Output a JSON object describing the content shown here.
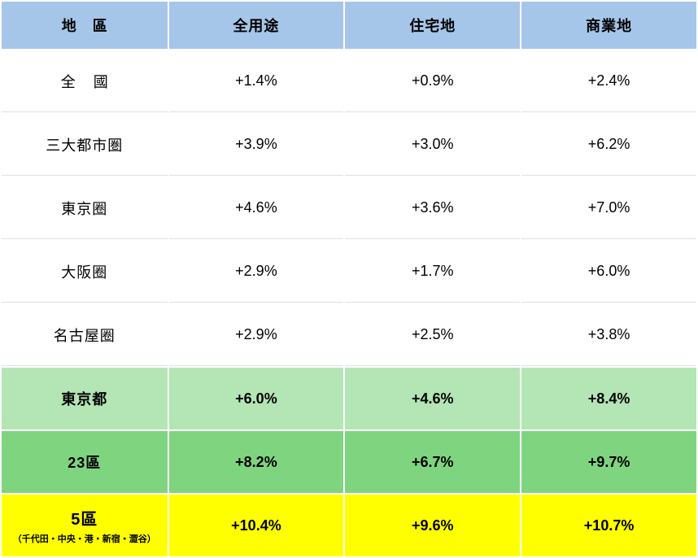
{
  "table": {
    "type": "table",
    "colors": {
      "header_bg": "#a5c6e8",
      "body_bg": "#ffffff",
      "tokyo_to_bg": "#b4e5b4",
      "ku23_bg": "#7fd47f",
      "ku5_bg": "#ffff00",
      "text": "#000000",
      "border": "#e0e0e0"
    },
    "columns": {
      "region": "地區",
      "all_use": "全用途",
      "residential": "住宅地",
      "commercial": "商業地"
    },
    "rows": {
      "nationwide": {
        "region": "全國",
        "all_use": "+1.4%",
        "residential": "+0.9%",
        "commercial": "+2.4%"
      },
      "three_metro": {
        "region": "三大都市圏",
        "all_use": "+3.9%",
        "residential": "+3.0%",
        "commercial": "+6.2%"
      },
      "tokyo_area": {
        "region": "東京圈",
        "all_use": "+4.6%",
        "residential": "+3.6%",
        "commercial": "+7.0%"
      },
      "osaka_area": {
        "region": "大阪圈",
        "all_use": "+2.9%",
        "residential": "+1.7%",
        "commercial": "+6.0%"
      },
      "nagoya_area": {
        "region": "名古屋圈",
        "all_use": "+2.9%",
        "residential": "+2.5%",
        "commercial": "+3.8%"
      },
      "tokyo_to": {
        "region": "東京都",
        "all_use": "+6.0%",
        "residential": "+4.6%",
        "commercial": "+8.4%"
      },
      "ku23": {
        "region": "23區",
        "all_use": "+8.2%",
        "residential": "+6.7%",
        "commercial": "+9.7%"
      },
      "ku5": {
        "region": "5區",
        "region_sub": "（千代田・中央・港・新宿・澀谷）",
        "all_use": "+10.4%",
        "residential": "+9.6%",
        "commercial": "+10.7%"
      }
    },
    "font_sizes": {
      "header": 18,
      "body": 18,
      "region_main": 20,
      "region_sub": 11
    }
  }
}
